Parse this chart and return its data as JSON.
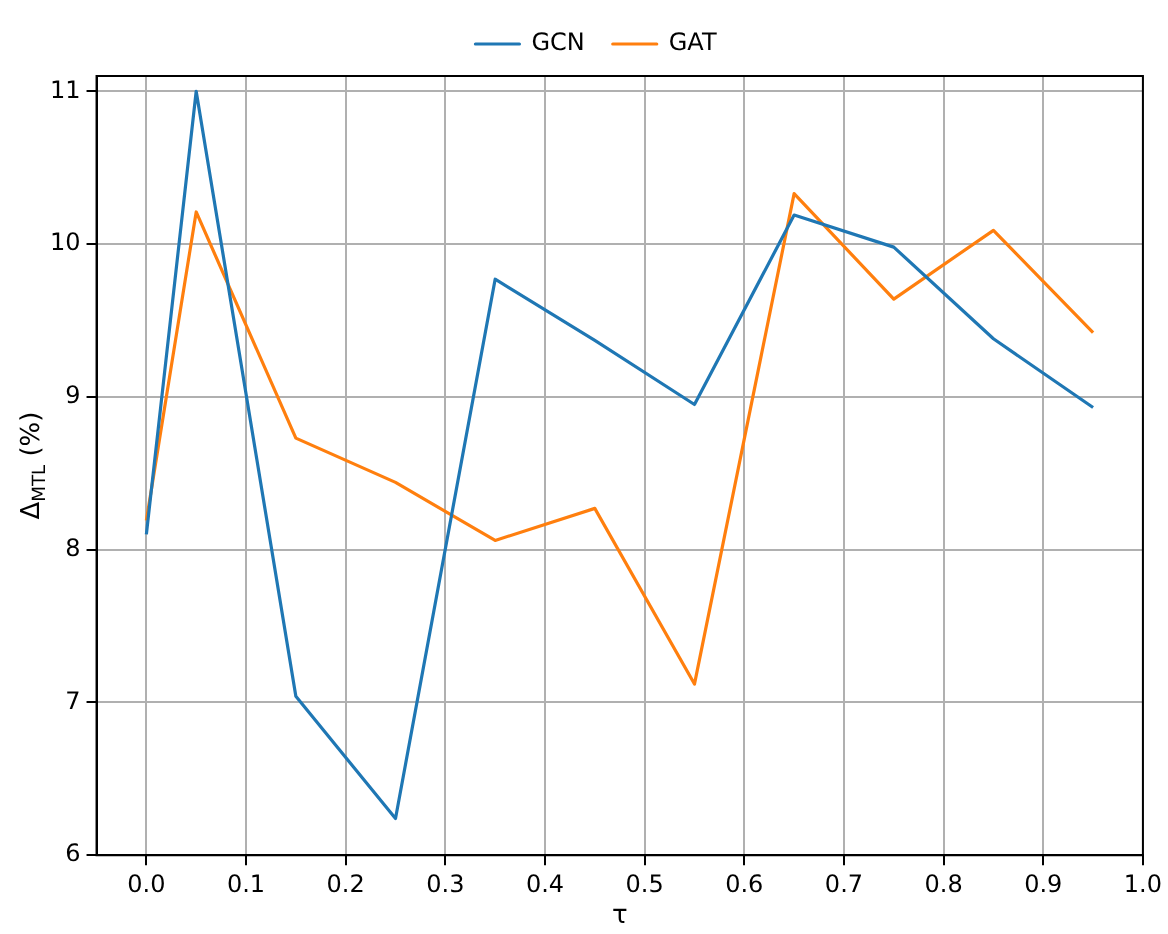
{
  "chart_data": {
    "type": "line",
    "xlabel": "τ",
    "ylabel": "Δ$_{MTL}$ (%)",
    "x": [
      0.0,
      0.05,
      0.15,
      0.25,
      0.35,
      0.45,
      0.55,
      0.65,
      0.75,
      0.85,
      0.95
    ],
    "series": [
      {
        "name": "GCN",
        "color": "#1f77b4",
        "values": [
          8.1,
          11.0,
          7.04,
          6.24,
          9.77,
          9.37,
          8.95,
          10.19,
          9.98,
          9.38,
          8.93
        ]
      },
      {
        "name": "GAT",
        "color": "#ff7f0e",
        "values": [
          8.19,
          10.21,
          8.73,
          8.44,
          8.06,
          8.27,
          7.12,
          10.33,
          9.64,
          10.09,
          9.42
        ]
      }
    ],
    "xlim": [
      -0.05,
      1.0
    ],
    "xticks": [
      {
        "value": 0,
        "label": "0.0"
      },
      {
        "value": 0.1,
        "label": "0.1"
      },
      {
        "value": 0.2,
        "label": "0.2"
      },
      {
        "value": 0.3,
        "label": "0.3"
      },
      {
        "value": 0.4,
        "label": "0.4"
      },
      {
        "value": 0.5,
        "label": "0.5"
      },
      {
        "value": 0.6,
        "label": "0.6"
      },
      {
        "value": 0.7,
        "label": "0.7"
      },
      {
        "value": 0.8,
        "label": "0.8"
      },
      {
        "value": 0.9,
        "label": "0.9"
      },
      {
        "value": 1.0,
        "label": "1.0"
      }
    ],
    "ylim": [
      6,
      11.1
    ],
    "yticks": [
      6,
      7,
      8,
      9,
      10,
      11
    ],
    "grid": true,
    "legend": "top",
    "marker": "none",
    "line_style": "solid"
  }
}
